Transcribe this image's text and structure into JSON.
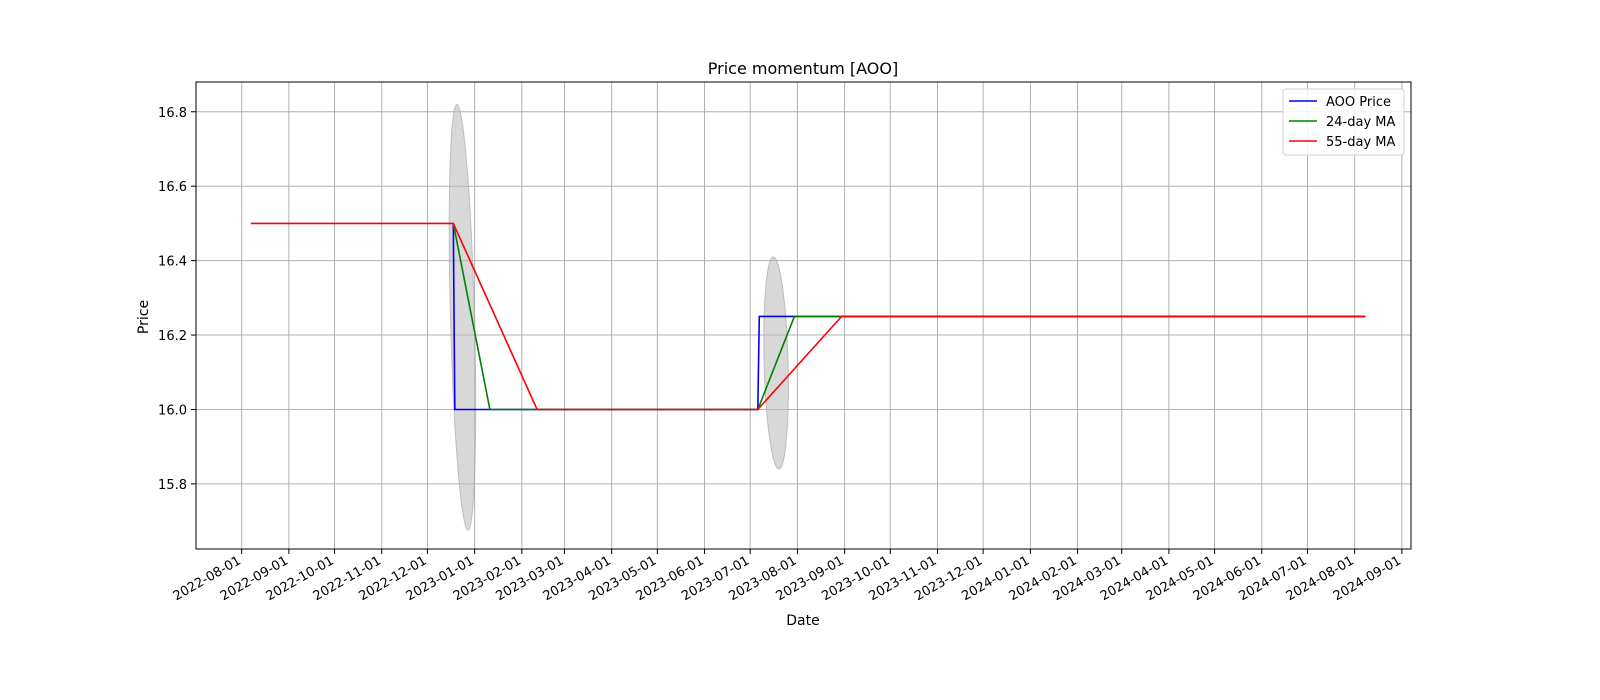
{
  "chart_data": {
    "type": "line",
    "title": "Price momentum [AOO]",
    "xlabel": "Date",
    "ylabel": "Price",
    "x_ticks": [
      "2022-08-01",
      "2022-09-01",
      "2022-10-01",
      "2022-11-01",
      "2022-12-01",
      "2023-01-01",
      "2023-02-01",
      "2023-03-01",
      "2023-04-01",
      "2023-05-01",
      "2023-06-01",
      "2023-07-01",
      "2023-08-01",
      "2023-09-01",
      "2023-10-01",
      "2023-11-01",
      "2023-12-01",
      "2024-01-01",
      "2024-02-01",
      "2024-03-01",
      "2024-04-01",
      "2024-05-01",
      "2024-06-01",
      "2024-07-01",
      "2024-08-01",
      "2024-09-01"
    ],
    "y_ticks": [
      "15.8",
      "16.0",
      "16.2",
      "16.4",
      "16.6",
      "16.8"
    ],
    "xlim": [
      "2022-07-02",
      "2024-09-07"
    ],
    "ylim": [
      15.625,
      16.88
    ],
    "grid": true,
    "legend_position": "top-right",
    "series": [
      {
        "name": "AOO Price",
        "color": "#0000ff",
        "points": [
          {
            "x": "2022-12-18",
            "y": 16.5
          },
          {
            "x": "2022-12-19",
            "y": 16.0
          },
          {
            "x": "2023-01-11",
            "y": 16.0
          },
          {
            "x": "2023-07-06",
            "y": 16.0
          },
          {
            "x": "2023-07-07",
            "y": 16.25
          },
          {
            "x": "2024-08-08",
            "y": 16.25
          }
        ]
      },
      {
        "name": "24-day MA",
        "color": "#008000",
        "points": [
          {
            "x": "2022-12-18",
            "y": 16.5
          },
          {
            "x": "2023-01-11",
            "y": 16.0
          },
          {
            "x": "2023-07-06",
            "y": 16.0
          },
          {
            "x": "2023-07-30",
            "y": 16.25
          },
          {
            "x": "2024-08-08",
            "y": 16.25
          }
        ]
      },
      {
        "name": "55-day MA",
        "color": "#ff0000",
        "points": [
          {
            "x": "2022-08-07",
            "y": 16.5
          },
          {
            "x": "2022-12-18",
            "y": 16.5
          },
          {
            "x": "2023-02-11",
            "y": 16.0
          },
          {
            "x": "2023-07-06",
            "y": 16.0
          },
          {
            "x": "2023-08-30",
            "y": 16.25
          },
          {
            "x": "2024-08-08",
            "y": 16.25
          }
        ]
      }
    ],
    "highlight_regions": [
      {
        "center_x": "2022-12-24",
        "y_min": 15.675,
        "y_max": 16.82,
        "color": "#bebebe"
      },
      {
        "center_x": "2023-07-18",
        "y_min": 15.84,
        "y_max": 16.41,
        "color": "#bebebe"
      }
    ]
  }
}
